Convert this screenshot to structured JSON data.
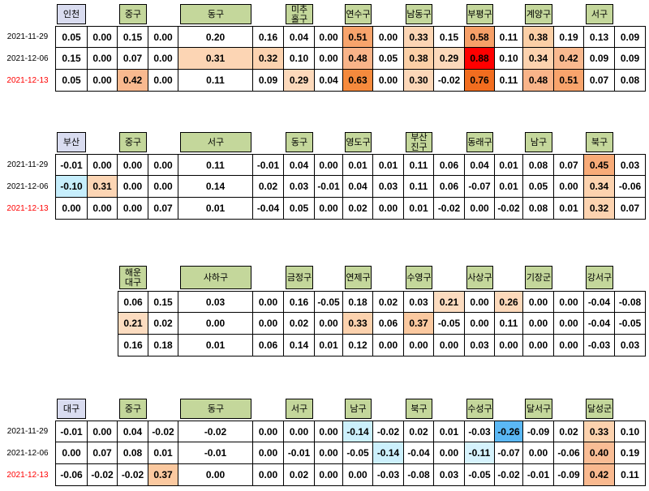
{
  "blocks": [
    {
      "start_col": 0,
      "headers": [
        "인천",
        "중구",
        "동구",
        "미추\n홀구",
        "연수구",
        "남동구",
        "부평구",
        "계양구",
        "서구"
      ],
      "rows": [
        {
          "date": "2021-11-29",
          "cells": [
            "0.05",
            "0.00",
            "0.15",
            "0.00",
            "0.20",
            "0.16",
            "0.04",
            "0.00",
            "0.51",
            "0.00",
            "0.33",
            "0.15",
            "0.58",
            "0.11",
            "0.38",
            "0.19",
            "0.13",
            "0.09"
          ],
          "highlights": {
            "8": "#f8a46c",
            "10": "#fcd5b4",
            "12": "#f7a068",
            "14": "#fbcfa6"
          }
        },
        {
          "date": "2021-12-06",
          "cells": [
            "0.15",
            "0.00",
            "0.07",
            "0.00",
            "0.31",
            "0.32",
            "0.10",
            "0.00",
            "0.48",
            "0.05",
            "0.38",
            "0.29",
            "0.88",
            "0.10",
            "0.34",
            "0.42",
            "0.09",
            "0.09"
          ],
          "highlights": {
            "4": "#fcd5b4",
            "5": "#fcd3b0",
            "8": "#f9b489",
            "10": "#fbcfa6",
            "11": "#fcd9bb",
            "12": "#ff0000",
            "14": "#fcd2ae",
            "15": "#f9b98f"
          }
        },
        {
          "date": "2021-12-13",
          "date_color": "#ff0000",
          "cells": [
            "0.05",
            "0.00",
            "0.42",
            "0.00",
            "0.11",
            "0.09",
            "0.29",
            "0.04",
            "0.63",
            "0.00",
            "0.30",
            "-0.02",
            "0.76",
            "0.11",
            "0.48",
            "0.51",
            "0.07",
            "0.08"
          ],
          "highlights": {
            "2": "#f9b98f",
            "6": "#fcd9bb",
            "8": "#f58a3d",
            "10": "#fcd7b8",
            "12": "#f26d1f",
            "14": "#f9b489",
            "15": "#f8a46c"
          }
        }
      ]
    },
    {
      "start_col": 0,
      "headers": [
        "부산",
        "중구",
        "서구",
        "동구",
        "영도구",
        "부산\n진구",
        "동래구",
        "남구",
        "북구"
      ],
      "rows": [
        {
          "date": "2021-11-29",
          "cells": [
            "-0.01",
            "0.00",
            "0.00",
            "0.00",
            "0.11",
            "-0.01",
            "0.04",
            "0.00",
            "0.01",
            "0.01",
            "0.11",
            "0.06",
            "0.04",
            "0.01",
            "0.08",
            "0.07",
            "0.45",
            "0.03"
          ],
          "highlights": {
            "16": "#f8ab78"
          }
        },
        {
          "date": "2021-12-06",
          "cells": [
            "-0.10",
            "0.31",
            "0.00",
            "0.00",
            "0.14",
            "0.02",
            "0.03",
            "-0.01",
            "0.04",
            "0.03",
            "0.11",
            "0.06",
            "-0.07",
            "0.01",
            "0.05",
            "0.00",
            "0.34",
            "-0.06"
          ],
          "highlights": {
            "0": "#c6eefc",
            "1": "#fcd5b4",
            "16": "#fcd2ae"
          }
        },
        {
          "date": "2021-12-13",
          "date_color": "#ff0000",
          "cells": [
            "0.00",
            "0.00",
            "0.00",
            "0.07",
            "0.01",
            "-0.04",
            "0.05",
            "0.00",
            "0.02",
            "0.00",
            "0.01",
            "-0.02",
            "0.00",
            "-0.02",
            "0.08",
            "0.01",
            "0.32",
            "0.07"
          ],
          "highlights": {
            "16": "#fcd3b0"
          }
        }
      ]
    },
    {
      "start_col": 2,
      "headers": [
        "해운\n대구",
        "사하구",
        "금정구",
        "연제구",
        "수영구",
        "사상구",
        "기장군",
        "강서구"
      ],
      "rows": [
        {
          "cells": [
            "0.06",
            "0.15",
            "0.03",
            "0.00",
            "0.16",
            "-0.05",
            "0.18",
            "0.02",
            "0.03",
            "0.21",
            "0.00",
            "0.26",
            "0.00",
            "0.00",
            "-0.04",
            "-0.08"
          ],
          "highlights": {
            "9": "#fcdcc0",
            "11": "#fcd9bb"
          }
        },
        {
          "cells": [
            "0.21",
            "0.02",
            "0.00",
            "0.00",
            "0.02",
            "0.00",
            "0.33",
            "0.06",
            "0.37",
            "-0.05",
            "0.00",
            "0.11",
            "0.00",
            "0.00",
            "-0.04",
            "-0.05"
          ],
          "highlights": {
            "0": "#fcdcc0",
            "6": "#fcd2ae",
            "8": "#fbc9a0"
          }
        },
        {
          "cells": [
            "0.16",
            "0.18",
            "0.01",
            "0.06",
            "0.14",
            "0.01",
            "0.12",
            "0.00",
            "0.00",
            "0.00",
            "0.03",
            "0.00",
            "0.00",
            "0.00",
            "-0.03",
            "0.03"
          ]
        }
      ]
    },
    {
      "start_col": 0,
      "headers": [
        "대구",
        "중구",
        "동구",
        "서구",
        "남구",
        "북구",
        "수성구",
        "달서구",
        "달성군"
      ],
      "rows": [
        {
          "date": "2021-11-29",
          "cells": [
            "-0.01",
            "0.00",
            "0.04",
            "-0.02",
            "-0.02",
            "0.00",
            "0.00",
            "0.00",
            "-0.14",
            "-0.02",
            "0.02",
            "0.01",
            "-0.03",
            "-0.26",
            "-0.09",
            "0.02",
            "0.33",
            "0.10"
          ],
          "highlights": {
            "8": "#ccf0fc",
            "13": "#5bb8f5",
            "16": "#fcd2ae"
          }
        },
        {
          "date": "2021-12-06",
          "cells": [
            "0.00",
            "0.07",
            "0.08",
            "0.01",
            "-0.01",
            "0.00",
            "-0.01",
            "0.00",
            "-0.05",
            "-0.14",
            "-0.04",
            "0.00",
            "-0.11",
            "-0.07",
            "0.00",
            "-0.06",
            "0.40",
            "0.19"
          ],
          "highlights": {
            "9": "#ccf0fc",
            "12": "#d6f3fd",
            "16": "#f9bd95"
          }
        },
        {
          "date": "2021-12-13",
          "date_color": "#ff0000",
          "cells": [
            "-0.06",
            "-0.02",
            "-0.02",
            "0.37",
            "0.00",
            "0.00",
            "0.02",
            "0.00",
            "0.00",
            "-0.03",
            "-0.08",
            "0.03",
            "-0.05",
            "-0.02",
            "-0.01",
            "-0.09",
            "0.42",
            "0.11"
          ],
          "highlights": {
            "3": "#fbc9a0",
            "16": "#f9b98f"
          }
        }
      ]
    }
  ]
}
